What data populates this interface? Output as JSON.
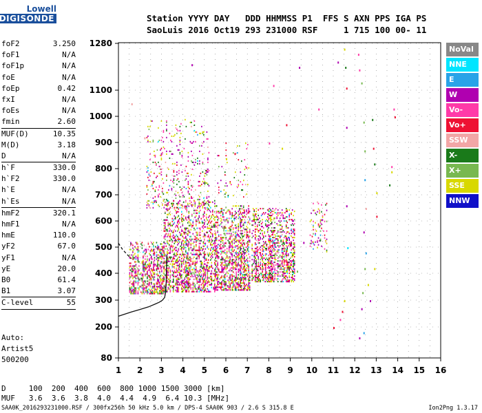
{
  "logo": {
    "brand_top": "Lowell",
    "brand_bottom": "DIGISONDE"
  },
  "header": {
    "line1": "Station YYYY DAY   DDD HHMMSS P1  FFS S AXN PPS IGA PS",
    "line2": "SaoLuis 2016 Oct19 293 231000 RSF     1 715 100 00- 11"
  },
  "params": {
    "group1": [
      {
        "k": "foF2",
        "v": "3.250"
      },
      {
        "k": "foF1",
        "v": "N/A"
      },
      {
        "k": "foF1p",
        "v": "N/A"
      },
      {
        "k": "foE",
        "v": "N/A"
      },
      {
        "k": "foEp",
        "v": "0.42"
      },
      {
        "k": "fxI",
        "v": "N/A"
      },
      {
        "k": "foEs",
        "v": "N/A"
      },
      {
        "k": "fmin",
        "v": "2.60"
      }
    ],
    "group2": [
      {
        "k": "MUF(D)",
        "v": "10.35"
      },
      {
        "k": "M(D)",
        "v": "3.18"
      },
      {
        "k": "D",
        "v": "N/A"
      }
    ],
    "group3": [
      {
        "k": "h`F",
        "v": "330.0"
      },
      {
        "k": "h`F2",
        "v": "330.0"
      },
      {
        "k": "h`E",
        "v": "N/A"
      },
      {
        "k": "h`Es",
        "v": "N/A"
      }
    ],
    "group4": [
      {
        "k": "hmF2",
        "v": "320.1"
      },
      {
        "k": "hmF1",
        "v": "N/A"
      },
      {
        "k": "hmE",
        "v": "110.0"
      },
      {
        "k": "yF2",
        "v": "67.0"
      },
      {
        "k": "yF1",
        "v": "N/A"
      },
      {
        "k": "yE",
        "v": "20.0"
      },
      {
        "k": "B0",
        "v": "61.4"
      },
      {
        "k": "B1",
        "v": "3.07"
      }
    ],
    "group5": [
      {
        "k": "C-level",
        "v": "55"
      }
    ]
  },
  "auto": {
    "line1": "Auto:",
    "line2": "Artist5",
    "line3": "500200"
  },
  "legend": [
    {
      "label": "NoVal",
      "color": "#888888"
    },
    {
      "label": "NNE",
      "color": "#00e5ff"
    },
    {
      "label": "E",
      "color": "#29a3e8"
    },
    {
      "label": "W",
      "color": "#b000b0"
    },
    {
      "label": "Vo-",
      "color": "#ff3aa8"
    },
    {
      "label": "Vo+",
      "color": "#ee1133"
    },
    {
      "label": "SSW",
      "color": "#f2a6a6"
    },
    {
      "label": "X-",
      "color": "#1a7a1a"
    },
    {
      "label": "X+",
      "color": "#78b850"
    },
    {
      "label": "SSE",
      "color": "#d8d800"
    },
    {
      "label": "NNW",
      "color": "#1010c8"
    }
  ],
  "dmuf": {
    "d_line": "D     100  200  400  600  800 1000 1500 3000 [km]",
    "muf_line": "MUF   3.6  3.6  3.8  4.0  4.4  4.9  6.4 10.3 [MHz]"
  },
  "footer": {
    "left": "SAA0K_2016293231000.RSF / 300fx256h 50 kHz 5.0 km / DPS-4 SAA0K 903 / 2.6 S 315.8 E",
    "right": "Ion2Png 1.3.17"
  },
  "chart_data": {
    "type": "scatter",
    "xlim": [
      1,
      16
    ],
    "ylim": [
      80,
      1280
    ],
    "x_ticks": [
      "1",
      "2",
      "3",
      "4",
      "5",
      "6",
      "7",
      "8",
      "9",
      "10",
      "11",
      "12",
      "13",
      "14",
      "15",
      "16"
    ],
    "y_ticks": [
      "80",
      "200",
      "300",
      "400",
      "500",
      "600",
      "700",
      "800",
      "900",
      "1000",
      "1100",
      "1280"
    ],
    "y_scale": "nonlinear",
    "y_tick_values": [
      80,
      200,
      300,
      400,
      500,
      600,
      700,
      800,
      900,
      1000,
      1100,
      1280
    ],
    "grid": "dotted",
    "profile": {
      "freq_mhz": [
        1.0,
        1.6,
        2.0,
        2.4,
        2.7,
        2.9,
        3.05,
        3.15,
        3.2,
        3.22,
        3.23,
        3.24,
        3.25
      ],
      "height_km": [
        240,
        256,
        265,
        275,
        285,
        292,
        300,
        310,
        330,
        360,
        400,
        440,
        470
      ]
    },
    "profile_extrapolated": {
      "freq_mhz": [
        1.0,
        1.2,
        1.6
      ],
      "height_km": [
        515,
        490,
        455
      ]
    },
    "echo_clusters": [
      {
        "f0": 1.5,
        "f1": 3.1,
        "h0": 325,
        "h1": 520,
        "density": 0.55
      },
      {
        "f0": 3.1,
        "f1": 5.5,
        "h0": 330,
        "h1": 680,
        "density": 0.5
      },
      {
        "f0": 5.5,
        "f1": 7.1,
        "h0": 340,
        "h1": 660,
        "density": 0.55
      },
      {
        "f0": 7.2,
        "f1": 9.2,
        "h0": 370,
        "h1": 650,
        "density": 0.55
      },
      {
        "f0": 2.3,
        "f1": 5.2,
        "h0": 650,
        "h1": 990,
        "density": 0.12
      },
      {
        "f0": 5.6,
        "f1": 7.1,
        "h0": 690,
        "h1": 900,
        "density": 0.06
      },
      {
        "f0": 9.9,
        "f1": 10.7,
        "h0": 480,
        "h1": 680,
        "density": 0.18
      }
    ],
    "scattered_echoes": [
      {
        "f": 11.2,
        "h": 1210
      },
      {
        "f": 11.5,
        "h": 1260
      },
      {
        "f": 11.55,
        "h": 1190
      },
      {
        "f": 11.6,
        "h": 1110
      },
      {
        "f": 11.6,
        "h": 960
      },
      {
        "f": 11.6,
        "h": 660
      },
      {
        "f": 11.65,
        "h": 500
      },
      {
        "f": 11.5,
        "h": 300
      },
      {
        "f": 11.4,
        "h": 260
      },
      {
        "f": 11.3,
        "h": 230
      },
      {
        "f": 11.0,
        "h": 200
      },
      {
        "f": 12.15,
        "h": 1240
      },
      {
        "f": 12.2,
        "h": 1180
      },
      {
        "f": 12.3,
        "h": 1130
      },
      {
        "f": 12.4,
        "h": 980
      },
      {
        "f": 12.45,
        "h": 870
      },
      {
        "f": 12.45,
        "h": 760
      },
      {
        "f": 12.5,
        "h": 650
      },
      {
        "f": 12.4,
        "h": 560
      },
      {
        "f": 12.5,
        "h": 480
      },
      {
        "f": 12.45,
        "h": 420
      },
      {
        "f": 12.35,
        "h": 330
      },
      {
        "f": 12.3,
        "h": 270
      },
      {
        "f": 12.4,
        "h": 180
      },
      {
        "f": 12.2,
        "h": 160
      },
      {
        "f": 12.8,
        "h": 990
      },
      {
        "f": 12.85,
        "h": 880
      },
      {
        "f": 12.9,
        "h": 820
      },
      {
        "f": 13.0,
        "h": 710
      },
      {
        "f": 13.0,
        "h": 620
      },
      {
        "f": 12.9,
        "h": 420
      },
      {
        "f": 12.6,
        "h": 360
      },
      {
        "f": 12.7,
        "h": 300
      },
      {
        "f": 13.6,
        "h": 740
      },
      {
        "f": 13.7,
        "h": 810
      },
      {
        "f": 13.8,
        "h": 1030
      },
      {
        "f": 13.85,
        "h": 1000
      },
      {
        "f": 13.7,
        "h": 790
      },
      {
        "f": 10.3,
        "h": 1030
      },
      {
        "f": 9.4,
        "h": 1190
      },
      {
        "f": 8.8,
        "h": 970
      },
      {
        "f": 8.6,
        "h": 880
      },
      {
        "f": 8.2,
        "h": 1120
      },
      {
        "f": 4.4,
        "h": 1200
      },
      {
        "f": 1.6,
        "h": 1050
      },
      {
        "f": 2.2,
        "h": 920
      },
      {
        "f": 9.3,
        "h": 410
      },
      {
        "f": 9.6,
        "h": 520
      },
      {
        "f": 6.4,
        "h": 860
      },
      {
        "f": 6.0,
        "h": 840
      },
      {
        "f": 8.0,
        "h": 900
      }
    ]
  }
}
